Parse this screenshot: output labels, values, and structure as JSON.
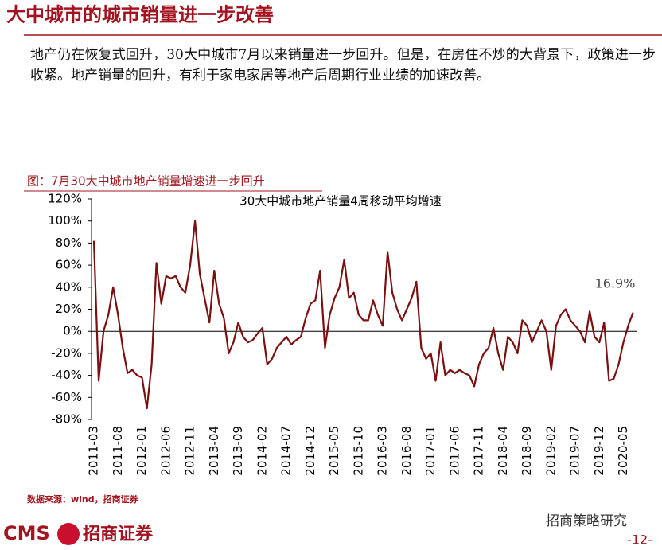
{
  "header": {
    "title": "大中城市的城市销量进一步改善"
  },
  "body": "地产仍在恢复式回升，30大中城市7月以来销量进一步回升。但是，在房住不炒的大背景下，政策进一步收紧。地产销量的回升，有利于家电家居等地产后周期行业业绩的加速改善。",
  "caption": "图：7月30大中城市地产销量增速进一步回升",
  "source": "数据来源：wind，招商证券",
  "footer": {
    "logo": "CMS",
    "company": "招商证券",
    "account": "招商策略研究",
    "page": "-12-"
  },
  "chart_data": {
    "type": "line",
    "title": "30大中城市地产销量4周移动平均增速",
    "categories": [
      "2011-03",
      null,
      null,
      null,
      null,
      "2011-08",
      null,
      null,
      null,
      null,
      "2012-01",
      null,
      null,
      null,
      null,
      "2012-06",
      null,
      null,
      null,
      null,
      "2012-11",
      null,
      null,
      null,
      null,
      "2013-04",
      null,
      null,
      null,
      null,
      "2013-09",
      null,
      null,
      null,
      null,
      "2014-02",
      null,
      null,
      null,
      null,
      "2014-07",
      null,
      null,
      null,
      null,
      "2014-12",
      null,
      null,
      null,
      null,
      "2015-05",
      null,
      null,
      null,
      null,
      "2015-10",
      null,
      null,
      null,
      null,
      "2016-03",
      null,
      null,
      null,
      null,
      "2016-08",
      null,
      null,
      null,
      null,
      "2017-01",
      null,
      null,
      null,
      null,
      "2017-06",
      null,
      null,
      null,
      null,
      "2017-11",
      null,
      null,
      null,
      null,
      "2018-04",
      null,
      null,
      null,
      null,
      "2018-09",
      null,
      null,
      null,
      null,
      "2019-02",
      null,
      null,
      null,
      null,
      "2019-07",
      null,
      null,
      null,
      null,
      "2019-12",
      null,
      null,
      null,
      null,
      "2020-05",
      null,
      null
    ],
    "series": [
      {
        "name": "30大中城市地产销量4周移动平均增速",
        "color": "#7b1010",
        "values": [
          82,
          -45,
          0,
          15,
          40,
          15,
          -15,
          -38,
          -35,
          -40,
          -42,
          -70,
          -30,
          62,
          25,
          50,
          48,
          50,
          40,
          35,
          60,
          100,
          52,
          30,
          8,
          55,
          25,
          12,
          -20,
          -10,
          8,
          -5,
          -10,
          -8,
          -2,
          3,
          -30,
          -25,
          -15,
          -10,
          -5,
          -12,
          -8,
          -5,
          12,
          25,
          28,
          55,
          -15,
          15,
          30,
          40,
          65,
          30,
          35,
          15,
          10,
          10,
          28,
          15,
          5,
          72,
          35,
          20,
          10,
          20,
          30,
          45,
          -15,
          -25,
          -20,
          -45,
          -10,
          -40,
          -35,
          -38,
          -35,
          -38,
          -40,
          -50,
          -30,
          -20,
          -15,
          3,
          -20,
          -35,
          -5,
          -10,
          -20,
          10,
          5,
          -10,
          0,
          10,
          0,
          -35,
          5,
          15,
          20,
          10,
          5,
          0,
          -10,
          18,
          -5,
          -10,
          8,
          -45,
          -43,
          -30,
          -10,
          5,
          16.9
        ]
      }
    ],
    "annotation": "16.9%",
    "ylim": [
      -80,
      120
    ],
    "yticks": [
      {
        "value": -80,
        "label": "-80%"
      },
      {
        "value": -60,
        "label": "-60%"
      },
      {
        "value": -40,
        "label": "-40%"
      },
      {
        "value": -20,
        "label": "-20%"
      },
      {
        "value": 0,
        "label": "0%"
      },
      {
        "value": 20,
        "label": "20%"
      },
      {
        "value": 40,
        "label": "40%"
      },
      {
        "value": 60,
        "label": "60%"
      },
      {
        "value": 80,
        "label": "80%"
      },
      {
        "value": 100,
        "label": "100%"
      },
      {
        "value": 120,
        "label": "120%"
      }
    ],
    "grid": false
  }
}
